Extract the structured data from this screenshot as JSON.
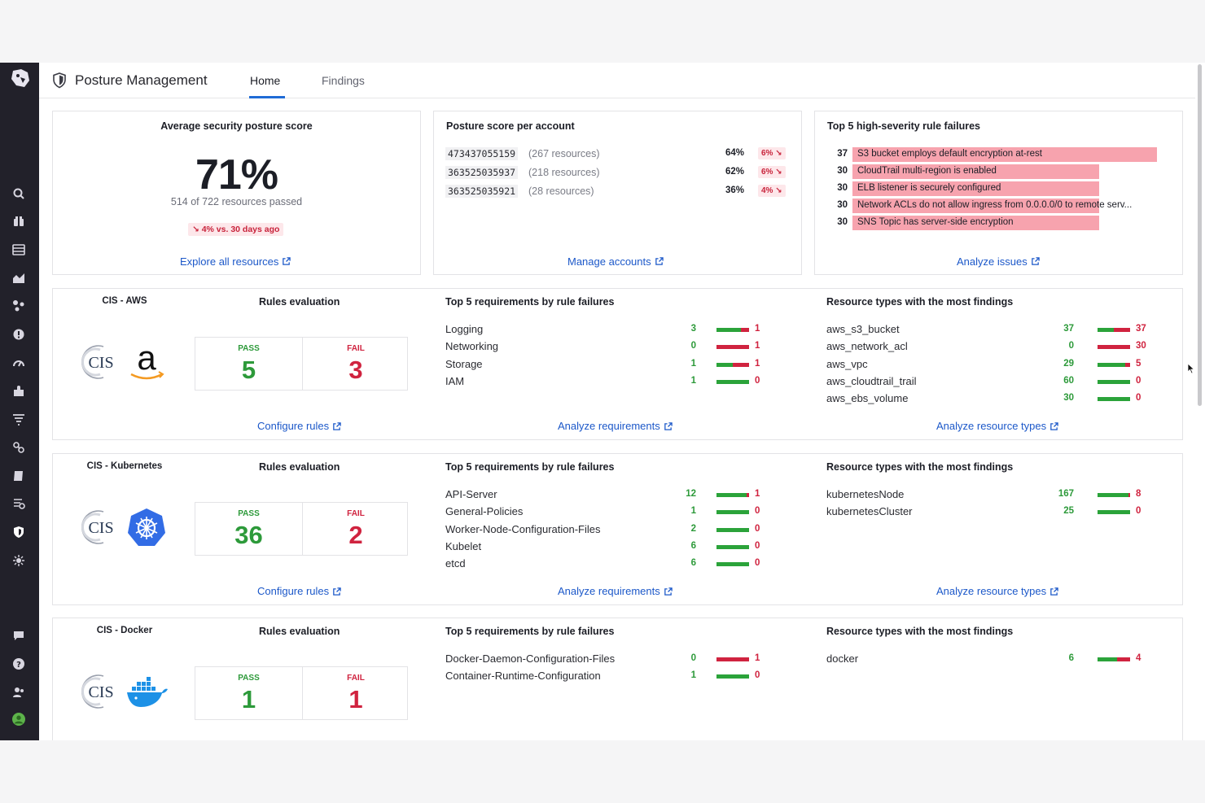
{
  "app": {
    "title": "Posture Management"
  },
  "tabs": [
    {
      "label": "Home"
    },
    {
      "label": "Findings"
    }
  ],
  "avg_score": {
    "title": "Average security posture score",
    "score": "71%",
    "subtitle": "514 of 722 resources passed",
    "delta": "↘ 4% vs. 30 days ago",
    "link": "Explore all resources"
  },
  "accounts": {
    "title": "Posture score per account",
    "rows": [
      {
        "id": "473437055159",
        "resources": "(267 resources)",
        "pct": "64%",
        "delta": "6% ↘"
      },
      {
        "id": "363525035937",
        "resources": "(218 resources)",
        "pct": "62%",
        "delta": "6% ↘"
      },
      {
        "id": "363525035921",
        "resources": "(28 resources)",
        "pct": "36%",
        "delta": "4% ↘"
      }
    ],
    "link": "Manage accounts"
  },
  "top_failures": {
    "title": "Top 5 high-severity rule failures",
    "rows": [
      {
        "count": "37",
        "value": 37,
        "text": "S3 bucket employs default encryption at-rest"
      },
      {
        "count": "30",
        "value": 30,
        "text": "CloudTrail multi-region is enabled"
      },
      {
        "count": "30",
        "value": 30,
        "text": "ELB listener is securely configured"
      },
      {
        "count": "30",
        "value": 30,
        "text": "Network ACLs do not allow ingress from 0.0.0.0/0 to remote serv..."
      },
      {
        "count": "30",
        "value": 30,
        "text": "SNS Topic has server-side encryption"
      }
    ],
    "link": "Analyze issues"
  },
  "frameworks": [
    {
      "name": "CIS - AWS",
      "vendor": "amazon-logo",
      "rules_title": "Rules evaluation",
      "pass_label": "PASS",
      "pass": "5",
      "fail_label": "FAIL",
      "fail": "3",
      "configure_link": "Configure rules",
      "req_title": "Top 5 requirements by rule failures",
      "requirements": [
        {
          "name": "Logging",
          "pass": "3",
          "fail": "1",
          "ratio": 0.75
        },
        {
          "name": "Networking",
          "pass": "0",
          "fail": "1",
          "ratio": 0
        },
        {
          "name": "Storage",
          "pass": "1",
          "fail": "1",
          "ratio": 0.5
        },
        {
          "name": "IAM",
          "pass": "1",
          "fail": "0",
          "ratio": 1
        }
      ],
      "req_link": "Analyze requirements",
      "res_title": "Resource types with the most findings",
      "resources": [
        {
          "name": "aws_s3_bucket",
          "pass": "37",
          "fail": "37",
          "ratio": 0.5
        },
        {
          "name": "aws_network_acl",
          "pass": "0",
          "fail": "30",
          "ratio": 0
        },
        {
          "name": "aws_vpc",
          "pass": "29",
          "fail": "5",
          "ratio": 0.85
        },
        {
          "name": "aws_cloudtrail_trail",
          "pass": "60",
          "fail": "0",
          "ratio": 1
        },
        {
          "name": "aws_ebs_volume",
          "pass": "30",
          "fail": "0",
          "ratio": 1
        }
      ],
      "res_link": "Analyze resource types"
    },
    {
      "name": "CIS - Kubernetes",
      "vendor": "kubernetes-logo",
      "rules_title": "Rules evaluation",
      "pass_label": "PASS",
      "pass": "36",
      "fail_label": "FAIL",
      "fail": "2",
      "configure_link": "Configure rules",
      "req_title": "Top 5 requirements by rule failures",
      "requirements": [
        {
          "name": "API-Server",
          "pass": "12",
          "fail": "1",
          "ratio": 0.92
        },
        {
          "name": "General-Policies",
          "pass": "1",
          "fail": "0",
          "ratio": 1
        },
        {
          "name": "Worker-Node-Configuration-Files",
          "pass": "2",
          "fail": "0",
          "ratio": 1
        },
        {
          "name": "Kubelet",
          "pass": "6",
          "fail": "0",
          "ratio": 1
        },
        {
          "name": "etcd",
          "pass": "6",
          "fail": "0",
          "ratio": 1
        }
      ],
      "req_link": "Analyze requirements",
      "res_title": "Resource types with the most findings",
      "resources": [
        {
          "name": "kubernetesNode",
          "pass": "167",
          "fail": "8",
          "ratio": 0.95
        },
        {
          "name": "kubernetesCluster",
          "pass": "25",
          "fail": "0",
          "ratio": 1
        }
      ],
      "res_link": "Analyze resource types"
    },
    {
      "name": "CIS - Docker",
      "vendor": "docker-logo",
      "rules_title": "Rules evaluation",
      "pass_label": "PASS",
      "pass": "1",
      "fail_label": "FAIL",
      "fail": "1",
      "req_title": "Top 5 requirements by rule failures",
      "requirements": [
        {
          "name": "Docker-Daemon-Configuration-Files",
          "pass": "0",
          "fail": "1",
          "ratio": 0
        },
        {
          "name": "Container-Runtime-Configuration",
          "pass": "1",
          "fail": "0",
          "ratio": 1
        }
      ],
      "res_title": "Resource types with the most findings",
      "resources": [
        {
          "name": "docker",
          "pass": "6",
          "fail": "4",
          "ratio": 0.6
        }
      ]
    }
  ],
  "colors": {
    "accent": "#1c58c9",
    "pass": "#2d9a3a",
    "fail": "#d0233f",
    "sidebar": "#22212a"
  },
  "sidebar_icons": [
    "search-icon",
    "binoculars-icon",
    "dashboards-icon",
    "metrics-icon",
    "integrations-icon",
    "monitors-icon",
    "apm-icon",
    "extensions-icon",
    "logs-icon",
    "synthetics-icon",
    "notebooks-icon",
    "ci-icon",
    "security-icon",
    "rum-icon",
    "chat-icon",
    "help-icon",
    "team-icon",
    "user-avatar"
  ]
}
